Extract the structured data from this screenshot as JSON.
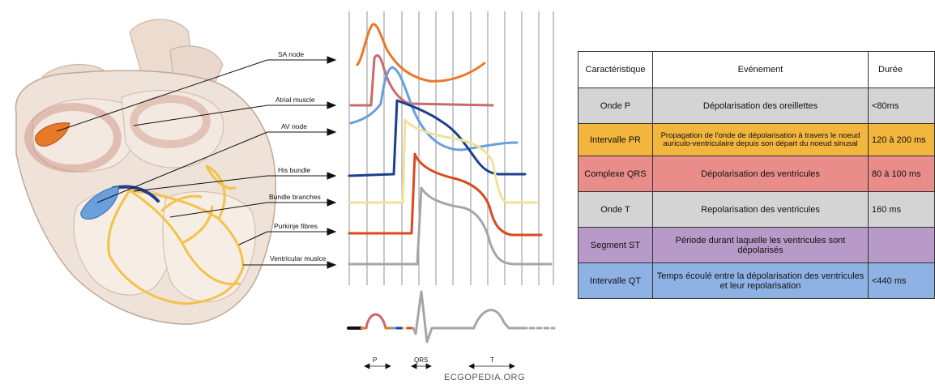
{
  "heart_labels": {
    "sa_node": "SA node",
    "atrial_muscle": "Atrial muscle",
    "av_node": "AV node",
    "his_bundle": "His bundle",
    "bundle_branches": "Bundle branches",
    "purkinje_fibres": "Purkinje fibres",
    "ventricular_muscle": "Ventricular muslce"
  },
  "ecg_labels": {
    "p": "P",
    "qrs": "QRS",
    "t": "T"
  },
  "brand": "ECGOPEDIA.ORG",
  "colors": {
    "sa_node": "#e8782a",
    "atrial_muscle": "#c96b6b",
    "av_node": "#6a9fdc",
    "his_bundle": "#1d3f8e",
    "bundle_branches": "#f0e29a",
    "purkinje_fibres": "#d94a1e",
    "ventricular_muscle": "#a6a6a6",
    "conduction_yellow": "#f3c24a"
  },
  "table": {
    "headers": [
      "Caractéristique",
      "Evénement",
      "Durée"
    ],
    "rows": [
      {
        "name": "Onde P",
        "event": "Dépolarisation des oreillettes",
        "duration": "<80ms",
        "color": "#d4d4d4"
      },
      {
        "name": "Intervalle PR",
        "event": "Propagation de l'onde de dépolarisation à travers le noeud auriculo-ventriculaire depuis son départ du noeud sinusal",
        "duration": "120 à 200 ms",
        "color": "#f2b53d"
      },
      {
        "name": "Complexe QRS",
        "event": "Dépolarisation des ventricules",
        "duration": "80 à 100 ms",
        "color": "#e98d8a"
      },
      {
        "name": "Onde T",
        "event": "Repolarisation des ventricules",
        "duration": "160 ms",
        "color": "#d4d4d4"
      },
      {
        "name": "Segment ST",
        "event": "Période durant laquelle les ventricules sont dépolarisés",
        "duration": "",
        "color": "#b79ac8"
      },
      {
        "name": "Intervalle QT",
        "event": "Temps écoulé entre la dépolarisation des ventricules et leur repolarisation",
        "duration": "<440 ms",
        "color": "#8fb2e4"
      }
    ]
  }
}
